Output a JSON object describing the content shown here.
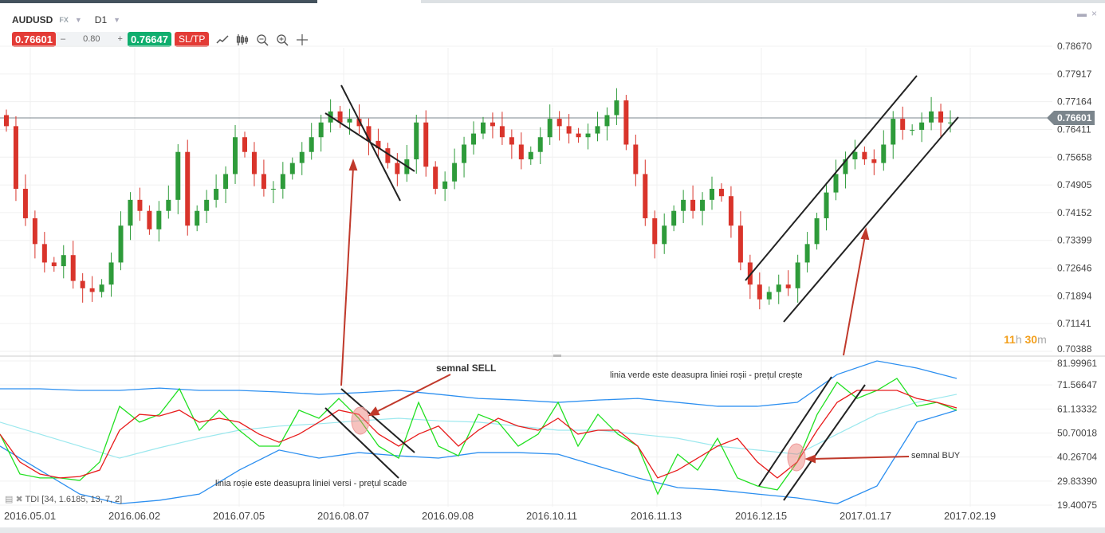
{
  "header": {
    "symbol": "AUDUSD",
    "market": "FX",
    "timeframe": "D1"
  },
  "toolbar": {
    "sell_price": "0.76601",
    "spread_minus": "–",
    "spread": "0.80",
    "spread_plus": "+",
    "buy_price": "0.76647",
    "sltp_label": "SL/TP",
    "icons": [
      "line-chart-icon",
      "candles-icon",
      "zoom-out-icon",
      "zoom-in-icon",
      "crosshair-icon"
    ]
  },
  "window": {
    "minimize": "▬",
    "close": "×"
  },
  "price_axis": [
    "0.78670",
    "0.77917",
    "0.77164",
    "0.76411",
    "0.75658",
    "0.74905",
    "0.74152",
    "0.73399",
    "0.72646",
    "0.71894",
    "0.71141",
    "0.70388"
  ],
  "current_price": "0.76601",
  "countdown": {
    "h": "11",
    "h_unit": "h",
    "m": "30",
    "m_unit": "m"
  },
  "tdi_axis": [
    "81.99961",
    "71.56647",
    "61.13332",
    "50.70018",
    "40.26704",
    "29.83390",
    "19.40075"
  ],
  "tdi_label": "TDI [34, 1.6185, 13, 7, 2]",
  "dates": [
    "2016.05.01",
    "2016.06.02",
    "2016.07.05",
    "2016.08.07",
    "2016.09.08",
    "2016.10.11",
    "2016.11.13",
    "2016.12.15",
    "2017.01.17",
    "2017.02.19"
  ],
  "annotations": {
    "sell_signal": "semnal SELL",
    "buy_signal": "semnal BUY",
    "sell_text": "linia roșie este deasupra liniei versi - prețul scade",
    "buy_text": "linia verde este deasupra liniei roșii - prețul crește"
  },
  "colors": {
    "bull": "#2e9b3a",
    "bear": "#d9342b",
    "tdi_green": "#22e022",
    "tdi_red": "#e81c1c",
    "band": "#2c8ff0",
    "mid": "#9be8ee",
    "arrow": "#c0392b"
  },
  "chart_data": {
    "type": "candlestick",
    "price_range": [
      0.70388,
      0.7867
    ],
    "closes": [
      0.765,
      0.748,
      0.74,
      0.733,
      0.728,
      0.727,
      0.73,
      0.723,
      0.721,
      0.72,
      0.722,
      0.728,
      0.738,
      0.745,
      0.742,
      0.737,
      0.742,
      0.745,
      0.758,
      0.738,
      0.742,
      0.745,
      0.748,
      0.752,
      0.762,
      0.758,
      0.752,
      0.748,
      0.748,
      0.752,
      0.755,
      0.758,
      0.762,
      0.766,
      0.769,
      0.766,
      0.767,
      0.765,
      0.761,
      0.759,
      0.755,
      0.752,
      0.756,
      0.766,
      0.754,
      0.748,
      0.75,
      0.755,
      0.76,
      0.763,
      0.766,
      0.765,
      0.762,
      0.76,
      0.756,
      0.758,
      0.762,
      0.767,
      0.765,
      0.763,
      0.762,
      0.763,
      0.765,
      0.768,
      0.772,
      0.76,
      0.752,
      0.74,
      0.733,
      0.738,
      0.742,
      0.745,
      0.742,
      0.745,
      0.748,
      0.746,
      0.738,
      0.728,
      0.722,
      0.718,
      0.72,
      0.722,
      0.721,
      0.728,
      0.733,
      0.74,
      0.747,
      0.752,
      0.756,
      0.758,
      0.756,
      0.755,
      0.76,
      0.767,
      0.764,
      0.764,
      0.766,
      0.769,
      0.766,
      0.766
    ],
    "tdi": {
      "range": [
        19.40075,
        81.99961
      ],
      "green": [
        50.2,
        32.9,
        31.2,
        31.2,
        30.1,
        38.1,
        62.3,
        55.4,
        58.8,
        69.9,
        51.9,
        60.6,
        51.9,
        45,
        45,
        60.6,
        57.1,
        65.7,
        57.1,
        45,
        39.8,
        64,
        45,
        40.8,
        58.8,
        55.4,
        45,
        50.2,
        64,
        45,
        58.8,
        50.2,
        45,
        24.2,
        41.5,
        34.6,
        48.4,
        31.2,
        27.7,
        26,
        38.1,
        58.8,
        72.7,
        65.7,
        69.2,
        74.4,
        62.3,
        64,
        60.6
      ],
      "red": [
        50.2,
        38.1,
        32.9,
        31.2,
        31.8,
        34.6,
        51.9,
        58.8,
        58.1,
        60.6,
        55.4,
        57.1,
        55.4,
        50.2,
        46.7,
        50.2,
        55.4,
        60.6,
        58.8,
        50.2,
        45,
        50.2,
        53.7,
        45,
        51.9,
        57.1,
        53.7,
        51.9,
        57.1,
        50.2,
        51.9,
        51.9,
        45,
        31.2,
        34.6,
        39.8,
        45,
        48.4,
        38.1,
        31.2,
        38.1,
        51.9,
        64,
        69.2,
        69.2,
        69.2,
        65.7,
        64,
        61.6
      ],
      "upper": [
        69.9,
        69.9,
        69.2,
        69.2,
        70.2,
        69.2,
        69.2,
        68.5,
        67.5,
        68.2,
        69.2,
        67.5,
        65.7,
        65,
        64,
        65,
        65.7,
        64,
        62.3,
        62.3,
        64,
        76.1,
        82,
        78.9,
        74.4
      ],
      "lower": [
        45,
        34.6,
        24.2,
        20,
        21.5,
        24.2,
        34.6,
        43.3,
        39.8,
        42.2,
        40.8,
        39.8,
        42.2,
        42.2,
        41.5,
        36.3,
        31.2,
        27,
        26,
        24.2,
        22.5,
        20,
        27.7,
        55.4,
        60.6
      ],
      "mid": [
        55.4,
        50.2,
        45,
        39.8,
        44.3,
        48.4,
        51.9,
        53.7,
        54.7,
        56,
        57.1,
        56,
        55.4,
        53.7,
        51.9,
        51.9,
        50.2,
        48.4,
        45,
        43.3,
        41.5,
        50.2,
        58.8,
        64,
        67.5
      ]
    }
  }
}
